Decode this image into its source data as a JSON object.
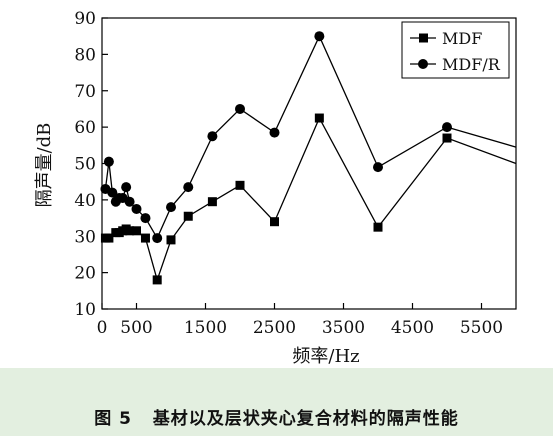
{
  "chart_data": {
    "type": "line",
    "xlabel": "频率/Hz",
    "ylabel": "隔声量/dB",
    "xlim": [
      0,
      6000
    ],
    "ylim": [
      10,
      90
    ],
    "xticks": [
      0,
      500,
      1500,
      2500,
      3500,
      4500,
      5500
    ],
    "yticks": [
      10,
      20,
      30,
      40,
      50,
      60,
      70,
      80,
      90
    ],
    "grid": false,
    "legend_position": "top-right",
    "series": [
      {
        "name": "MDF",
        "marker": "square",
        "color": "#000000",
        "x": [
          50,
          100,
          200,
          250,
          300,
          350,
          400,
          500,
          630,
          800,
          1000,
          1250,
          1600,
          2000,
          2500,
          3150,
          4000,
          5000,
          6000
        ],
        "y": [
          29.5,
          29.5,
          31,
          31,
          31.5,
          32,
          31.5,
          31.5,
          29.5,
          18,
          29,
          35.5,
          39.5,
          44,
          34,
          62.5,
          32.5,
          57,
          50
        ]
      },
      {
        "name": "MDF/R",
        "marker": "circle",
        "color": "#000000",
        "x": [
          50,
          100,
          150,
          200,
          250,
          300,
          350,
          400,
          500,
          630,
          800,
          1000,
          1250,
          1600,
          2000,
          2500,
          3150,
          4000,
          5000,
          6000
        ],
        "y": [
          43,
          50.5,
          42,
          39.5,
          40.5,
          40.5,
          43.5,
          39.5,
          37.5,
          35,
          29.5,
          38,
          43.5,
          57.5,
          65,
          58.5,
          85,
          49,
          60,
          54.5
        ]
      }
    ]
  },
  "caption": {
    "label": "图 5",
    "text": "基材以及层状夹心复合材料的隔声性能"
  }
}
